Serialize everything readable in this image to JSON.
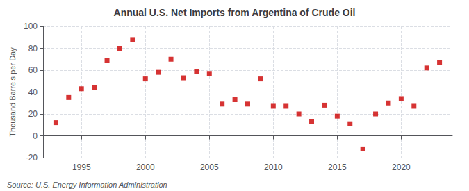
{
  "chart_data": {
    "type": "scatter",
    "title": "Annual U.S. Net Imports from Argentina of Crude Oil",
    "ylabel": "Thousand Barrels per Day",
    "annotations": [
      "Source: U.S. Energy Information Administration"
    ],
    "x": [
      1993,
      1994,
      1995,
      1996,
      1997,
      1998,
      1999,
      2000,
      2001,
      2002,
      2003,
      2004,
      2005,
      2006,
      2007,
      2008,
      2009,
      2010,
      2011,
      2012,
      2013,
      2014,
      2015,
      2016,
      2017,
      2018,
      2019,
      2020,
      2021,
      2022,
      2023
    ],
    "values": [
      12,
      35,
      43,
      44,
      69,
      80,
      88,
      52,
      58,
      70,
      53,
      59,
      57,
      29,
      33,
      29,
      52,
      27,
      27,
      20,
      13,
      28,
      18,
      11,
      -12,
      20,
      30,
      34,
      27,
      62,
      67
    ],
    "color": "#cc0000",
    "marker": "square",
    "xlim": [
      1992,
      2024
    ],
    "xticks": [
      1995,
      2000,
      2005,
      2010,
      2015,
      2020
    ],
    "ylim": [
      -20,
      100
    ],
    "yticks": [
      -20,
      0,
      20,
      40,
      60,
      80,
      100
    ],
    "grid": true
  }
}
